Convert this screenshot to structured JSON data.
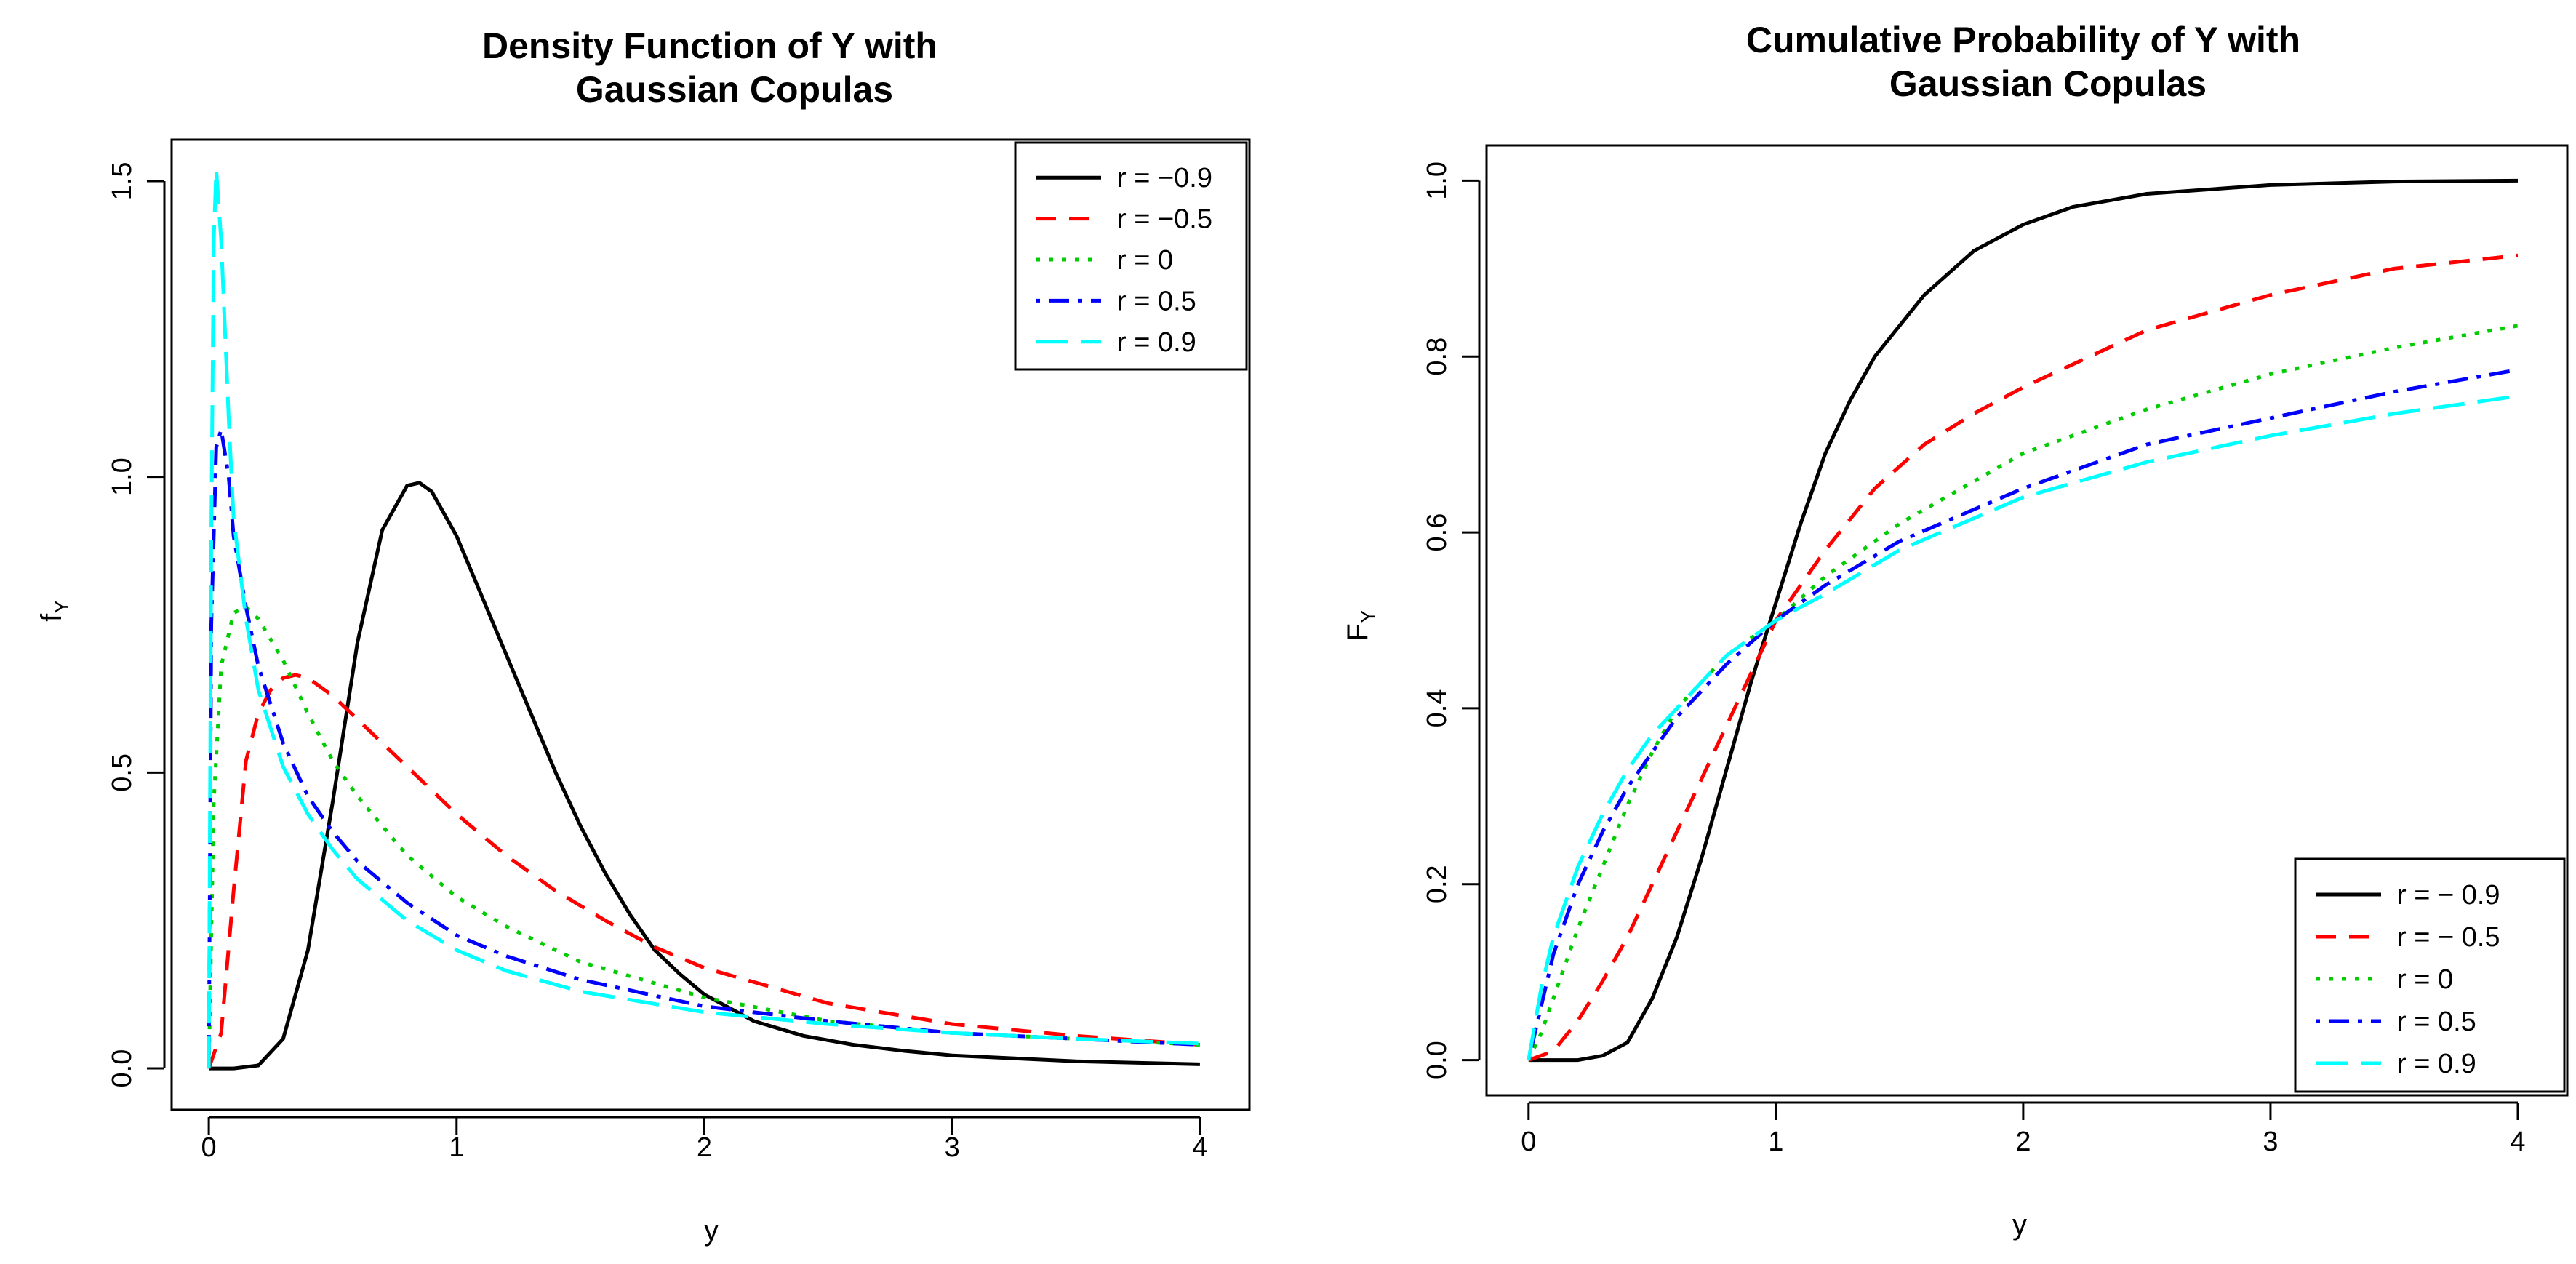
{
  "chart_data": [
    {
      "type": "line",
      "title_lines": [
        "Density Function of Y with",
        "Gaussian Copulas"
      ],
      "xlabel": "y",
      "ylabel": "f",
      "ylabel_sub": "Y",
      "xlim": [
        -0.15,
        4.2
      ],
      "ylim": [
        -0.07,
        1.57
      ],
      "xticks": [
        0,
        1,
        2,
        3,
        4
      ],
      "xtick_labels": [
        "0",
        "1",
        "2",
        "3",
        "4"
      ],
      "yticks": [
        0,
        0.5,
        1,
        1.5
      ],
      "ytick_labels": [
        "0.0",
        "0.5",
        "1.0",
        "1.5"
      ],
      "legend_position": "top-right",
      "legend_labels": [
        "r = −0.9",
        "r = −0.5",
        "r = 0",
        "r = 0.5",
        "r = 0.9"
      ],
      "series": [
        {
          "style": "solid",
          "color": "#000000",
          "x": [
            0,
            0.1,
            0.2,
            0.3,
            0.4,
            0.5,
            0.6,
            0.7,
            0.8,
            0.85,
            0.9,
            1.0,
            1.1,
            1.2,
            1.3,
            1.4,
            1.5,
            1.6,
            1.7,
            1.8,
            1.9,
            2.0,
            2.2,
            2.4,
            2.6,
            2.8,
            3.0,
            3.5,
            4.0
          ],
          "y": [
            0,
            0.0,
            0.005,
            0.05,
            0.2,
            0.45,
            0.72,
            0.91,
            0.985,
            0.99,
            0.975,
            0.9,
            0.8,
            0.7,
            0.6,
            0.5,
            0.41,
            0.33,
            0.26,
            0.2,
            0.16,
            0.125,
            0.08,
            0.055,
            0.04,
            0.03,
            0.022,
            0.012,
            0.007
          ]
        },
        {
          "style": "dashed",
          "color": "#ff0000",
          "x": [
            0,
            0.05,
            0.1,
            0.15,
            0.2,
            0.25,
            0.3,
            0.35,
            0.4,
            0.5,
            0.6,
            0.8,
            1.0,
            1.2,
            1.4,
            1.6,
            1.8,
            2.0,
            2.5,
            3.0,
            3.5,
            4.0
          ],
          "y": [
            0,
            0.06,
            0.3,
            0.52,
            0.6,
            0.64,
            0.66,
            0.665,
            0.66,
            0.63,
            0.59,
            0.51,
            0.43,
            0.36,
            0.3,
            0.25,
            0.205,
            0.17,
            0.11,
            0.075,
            0.055,
            0.04
          ]
        },
        {
          "style": "dotted",
          "color": "#00cc00",
          "x": [
            0,
            0.02,
            0.05,
            0.1,
            0.15,
            0.2,
            0.3,
            0.4,
            0.5,
            0.6,
            0.8,
            1.0,
            1.2,
            1.5,
            2.0,
            2.5,
            3.0,
            3.5,
            4.0
          ],
          "y": [
            0,
            0.45,
            0.68,
            0.77,
            0.78,
            0.76,
            0.69,
            0.6,
            0.52,
            0.46,
            0.36,
            0.29,
            0.24,
            0.18,
            0.12,
            0.08,
            0.06,
            0.05,
            0.04
          ]
        },
        {
          "style": "dotdash",
          "color": "#0000ff",
          "x": [
            0,
            0.01,
            0.03,
            0.05,
            0.08,
            0.1,
            0.15,
            0.2,
            0.3,
            0.4,
            0.5,
            0.6,
            0.8,
            1.0,
            1.2,
            1.5,
            2.0,
            2.5,
            3.0,
            3.5,
            4.0
          ],
          "y": [
            0,
            0.75,
            1.05,
            1.08,
            1.0,
            0.9,
            0.78,
            0.68,
            0.55,
            0.46,
            0.4,
            0.35,
            0.28,
            0.225,
            0.19,
            0.15,
            0.105,
            0.08,
            0.06,
            0.05,
            0.04
          ]
        },
        {
          "style": "longdash",
          "color": "#00ffff",
          "x": [
            0,
            0.01,
            0.02,
            0.03,
            0.05,
            0.08,
            0.1,
            0.15,
            0.2,
            0.3,
            0.4,
            0.5,
            0.6,
            0.8,
            1.0,
            1.2,
            1.5,
            2.0,
            2.5,
            3.0,
            3.5,
            4.0
          ],
          "y": [
            0,
            0.9,
            1.4,
            1.52,
            1.4,
            1.1,
            0.93,
            0.76,
            0.64,
            0.51,
            0.43,
            0.37,
            0.32,
            0.25,
            0.2,
            0.165,
            0.13,
            0.095,
            0.075,
            0.06,
            0.05,
            0.042
          ]
        }
      ]
    },
    {
      "type": "line",
      "title_lines": [
        "Cumulative Probability of Y with",
        "Gaussian Copulas"
      ],
      "xlabel": "y",
      "ylabel": "F",
      "ylabel_sub": "Y",
      "xlim": [
        -0.17,
        4.2
      ],
      "ylim": [
        -0.04,
        1.04
      ],
      "xticks": [
        0,
        1,
        2,
        3,
        4
      ],
      "xtick_labels": [
        "0",
        "1",
        "2",
        "3",
        "4"
      ],
      "yticks": [
        0,
        0.2,
        0.4,
        0.6,
        0.8,
        1.0
      ],
      "ytick_labels": [
        "0.0",
        "0.2",
        "0.4",
        "0.6",
        "0.8",
        "1.0"
      ],
      "legend_position": "bottom-right",
      "legend_labels": [
        "r = − 0.9",
        "r = − 0.5",
        "r = 0",
        "r = 0.5",
        "r = 0.9"
      ],
      "series": [
        {
          "style": "solid",
          "color": "#000000",
          "x": [
            0,
            0.2,
            0.3,
            0.4,
            0.5,
            0.6,
            0.7,
            0.8,
            0.9,
            1.0,
            1.1,
            1.2,
            1.3,
            1.4,
            1.6,
            1.8,
            2.0,
            2.2,
            2.5,
            3.0,
            3.5,
            4.0
          ],
          "y": [
            0,
            0.0,
            0.005,
            0.02,
            0.07,
            0.14,
            0.23,
            0.33,
            0.43,
            0.52,
            0.61,
            0.69,
            0.75,
            0.8,
            0.87,
            0.92,
            0.95,
            0.97,
            0.985,
            0.995,
            0.999,
            1.0
          ]
        },
        {
          "style": "dashed",
          "color": "#ff0000",
          "x": [
            0,
            0.1,
            0.2,
            0.3,
            0.4,
            0.5,
            0.6,
            0.8,
            1.0,
            1.2,
            1.4,
            1.6,
            1.8,
            2.0,
            2.5,
            3.0,
            3.5,
            4.0
          ],
          "y": [
            0,
            0.01,
            0.045,
            0.09,
            0.14,
            0.2,
            0.26,
            0.38,
            0.5,
            0.58,
            0.65,
            0.7,
            0.735,
            0.765,
            0.83,
            0.87,
            0.9,
            0.915
          ]
        },
        {
          "style": "dotted",
          "color": "#00cc00",
          "x": [
            0,
            0.05,
            0.1,
            0.2,
            0.3,
            0.4,
            0.5,
            0.6,
            0.8,
            1.0,
            1.2,
            1.5,
            2.0,
            2.5,
            3.0,
            3.5,
            4.0
          ],
          "y": [
            0,
            0.03,
            0.07,
            0.15,
            0.22,
            0.29,
            0.35,
            0.4,
            0.46,
            0.5,
            0.55,
            0.61,
            0.69,
            0.74,
            0.78,
            0.81,
            0.835
          ]
        },
        {
          "style": "dotdash",
          "color": "#0000ff",
          "x": [
            0,
            0.05,
            0.1,
            0.2,
            0.3,
            0.4,
            0.5,
            0.6,
            0.8,
            1.0,
            1.2,
            1.5,
            2.0,
            2.5,
            3.0,
            3.5,
            4.0
          ],
          "y": [
            0,
            0.06,
            0.12,
            0.2,
            0.26,
            0.31,
            0.35,
            0.39,
            0.45,
            0.5,
            0.54,
            0.59,
            0.65,
            0.7,
            0.73,
            0.76,
            0.785
          ]
        },
        {
          "style": "longdash",
          "color": "#00ffff",
          "x": [
            0,
            0.05,
            0.1,
            0.2,
            0.3,
            0.4,
            0.5,
            0.6,
            0.8,
            1.0,
            1.2,
            1.5,
            2.0,
            2.5,
            3.0,
            3.5,
            4.0
          ],
          "y": [
            0,
            0.08,
            0.14,
            0.22,
            0.28,
            0.33,
            0.37,
            0.4,
            0.46,
            0.5,
            0.53,
            0.58,
            0.64,
            0.68,
            0.71,
            0.735,
            0.755
          ]
        }
      ]
    }
  ]
}
